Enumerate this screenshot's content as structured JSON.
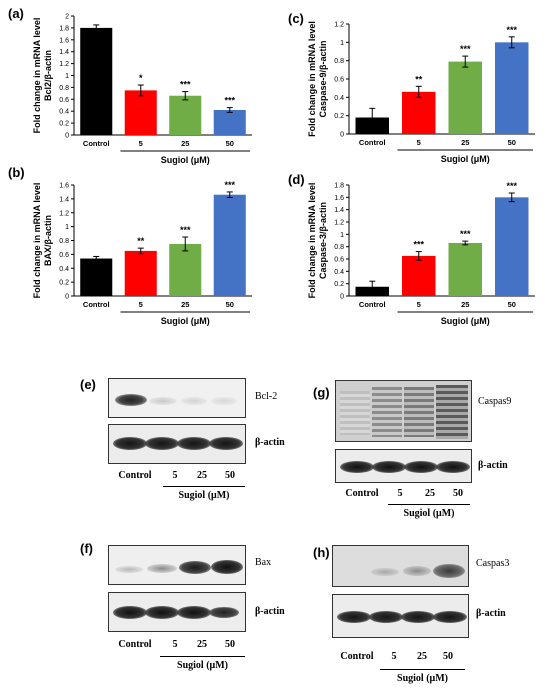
{
  "panels": {
    "a": "(a)",
    "b": "(b)",
    "c": "(c)",
    "d": "(d)",
    "e": "(e)",
    "f": "(f)",
    "g": "(g)",
    "h": "(h)"
  },
  "chart_data": [
    {
      "id": "a",
      "type": "bar",
      "ylabel_lines": [
        "Fold change in mRNA level",
        "Bcl2/β-actin"
      ],
      "ylim": [
        0,
        2
      ],
      "yticks": [
        0,
        0.2,
        0.4,
        0.6,
        0.8,
        1,
        1.2,
        1.4,
        1.6,
        1.8,
        2
      ],
      "categories": [
        "Control",
        "5",
        "25",
        "50"
      ],
      "values": [
        1.8,
        0.75,
        0.66,
        0.42
      ],
      "errors": [
        0.05,
        0.09,
        0.07,
        0.04
      ],
      "significance": [
        "",
        "*",
        "***",
        "***"
      ],
      "group_label": "Sugiol (μM)",
      "colors": [
        "#000000",
        "#ff0000",
        "#70ad47",
        "#4472c4"
      ],
      "grid": false
    },
    {
      "id": "b",
      "type": "bar",
      "ylabel_lines": [
        "Fold change in mRNA level",
        "BAX/β-actin"
      ],
      "ylim": [
        0,
        1.6
      ],
      "yticks": [
        0,
        0.2,
        0.4,
        0.6,
        0.8,
        1,
        1.2,
        1.4,
        1.6
      ],
      "categories": [
        "Control",
        "5",
        "25",
        "50"
      ],
      "values": [
        0.54,
        0.65,
        0.75,
        1.46
      ],
      "errors": [
        0.03,
        0.04,
        0.1,
        0.04
      ],
      "significance": [
        "",
        "**",
        "***",
        "***"
      ],
      "group_label": "Sugiol (μM)",
      "colors": [
        "#000000",
        "#ff0000",
        "#70ad47",
        "#4472c4"
      ],
      "grid": false
    },
    {
      "id": "c",
      "type": "bar",
      "ylabel_lines": [
        "Fold change in mRNA level",
        "Caspase-9/β-actin"
      ],
      "ylim": [
        0,
        1.2
      ],
      "yticks": [
        0,
        0.2,
        0.4,
        0.6,
        0.8,
        1,
        1.2
      ],
      "categories": [
        "Control",
        "5",
        "25",
        "50"
      ],
      "values": [
        0.18,
        0.46,
        0.79,
        1.0
      ],
      "errors": [
        0.1,
        0.06,
        0.06,
        0.06
      ],
      "significance": [
        "",
        "**",
        "***",
        "***"
      ],
      "group_label": "Sugiol (μM)",
      "colors": [
        "#000000",
        "#ff0000",
        "#70ad47",
        "#4472c4"
      ],
      "grid": false
    },
    {
      "id": "d",
      "type": "bar",
      "ylabel_lines": [
        "Fold change in mRNA level",
        "Caspase-3/β-actin"
      ],
      "ylim": [
        0,
        1.8
      ],
      "yticks": [
        0,
        0.2,
        0.4,
        0.6,
        0.8,
        1,
        1.2,
        1.4,
        1.6,
        1.8
      ],
      "categories": [
        "Control",
        "5",
        "25",
        "50"
      ],
      "values": [
        0.15,
        0.65,
        0.86,
        1.6
      ],
      "errors": [
        0.09,
        0.07,
        0.03,
        0.07
      ],
      "significance": [
        "",
        "***",
        "***",
        "***"
      ],
      "group_label": "Sugiol (μM)",
      "colors": [
        "#000000",
        "#ff0000",
        "#70ad47",
        "#4472c4"
      ],
      "grid": false
    }
  ],
  "blots": {
    "e": {
      "protein": "Bcl-2",
      "control": "β-actin",
      "lanes": [
        "Control",
        "5",
        "25",
        "50"
      ],
      "group": "Sugiol (μM)"
    },
    "f": {
      "protein": "Bax",
      "control": "β-actin",
      "lanes": [
        "Control",
        "5",
        "25",
        "50"
      ],
      "group": "Sugiol (μM)"
    },
    "g": {
      "protein": "Caspas9",
      "control": "β-actin",
      "lanes": [
        "Control",
        "5",
        "25",
        "50"
      ],
      "group": "Sugiol (μM)"
    },
    "h": {
      "protein": "Caspas3",
      "control": "β-actin",
      "lanes": [
        "Control",
        "5",
        "25",
        "50"
      ],
      "group": "Sugiol (μM)"
    }
  }
}
